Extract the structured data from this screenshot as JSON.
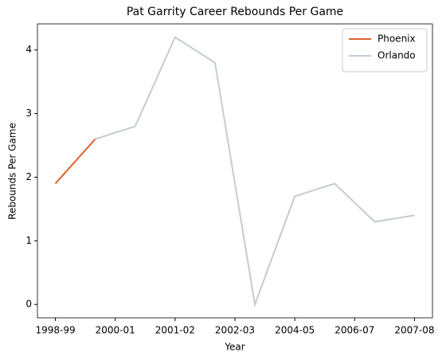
{
  "chart_data": {
    "type": "line",
    "title": "Pat Garrity Career Rebounds Per Game",
    "xlabel": "Year",
    "ylabel": "Rebounds Per Game",
    "series": [
      {
        "name": "Phoenix",
        "color": "#dd6330",
        "x": [
          0,
          1
        ],
        "values": [
          1.9,
          2.6
        ]
      },
      {
        "name": "Orlando",
        "color": "#c2ccd4",
        "x": [
          1,
          2,
          3,
          4,
          5,
          6,
          7,
          8,
          9
        ],
        "values": [
          2.6,
          2.8,
          4.2,
          3.8,
          0,
          1.7,
          1.9,
          1.3,
          1.4
        ]
      }
    ],
    "xlim": [
      -0.45,
      9.45
    ],
    "xticks": [
      {
        "value": 0,
        "label": "1998-99"
      },
      {
        "value": 1.5,
        "label": "2000-01"
      },
      {
        "value": 3,
        "label": "2001-02"
      },
      {
        "value": 4.5,
        "label": "2002-03"
      },
      {
        "value": 6,
        "label": "2004-05"
      },
      {
        "value": 7.5,
        "label": "2006-07"
      },
      {
        "value": 9,
        "label": "2007-08"
      }
    ],
    "ylim": [
      -0.21,
      4.41
    ],
    "yticks": [
      0,
      1,
      2,
      3,
      4
    ],
    "legend": "upper right"
  }
}
